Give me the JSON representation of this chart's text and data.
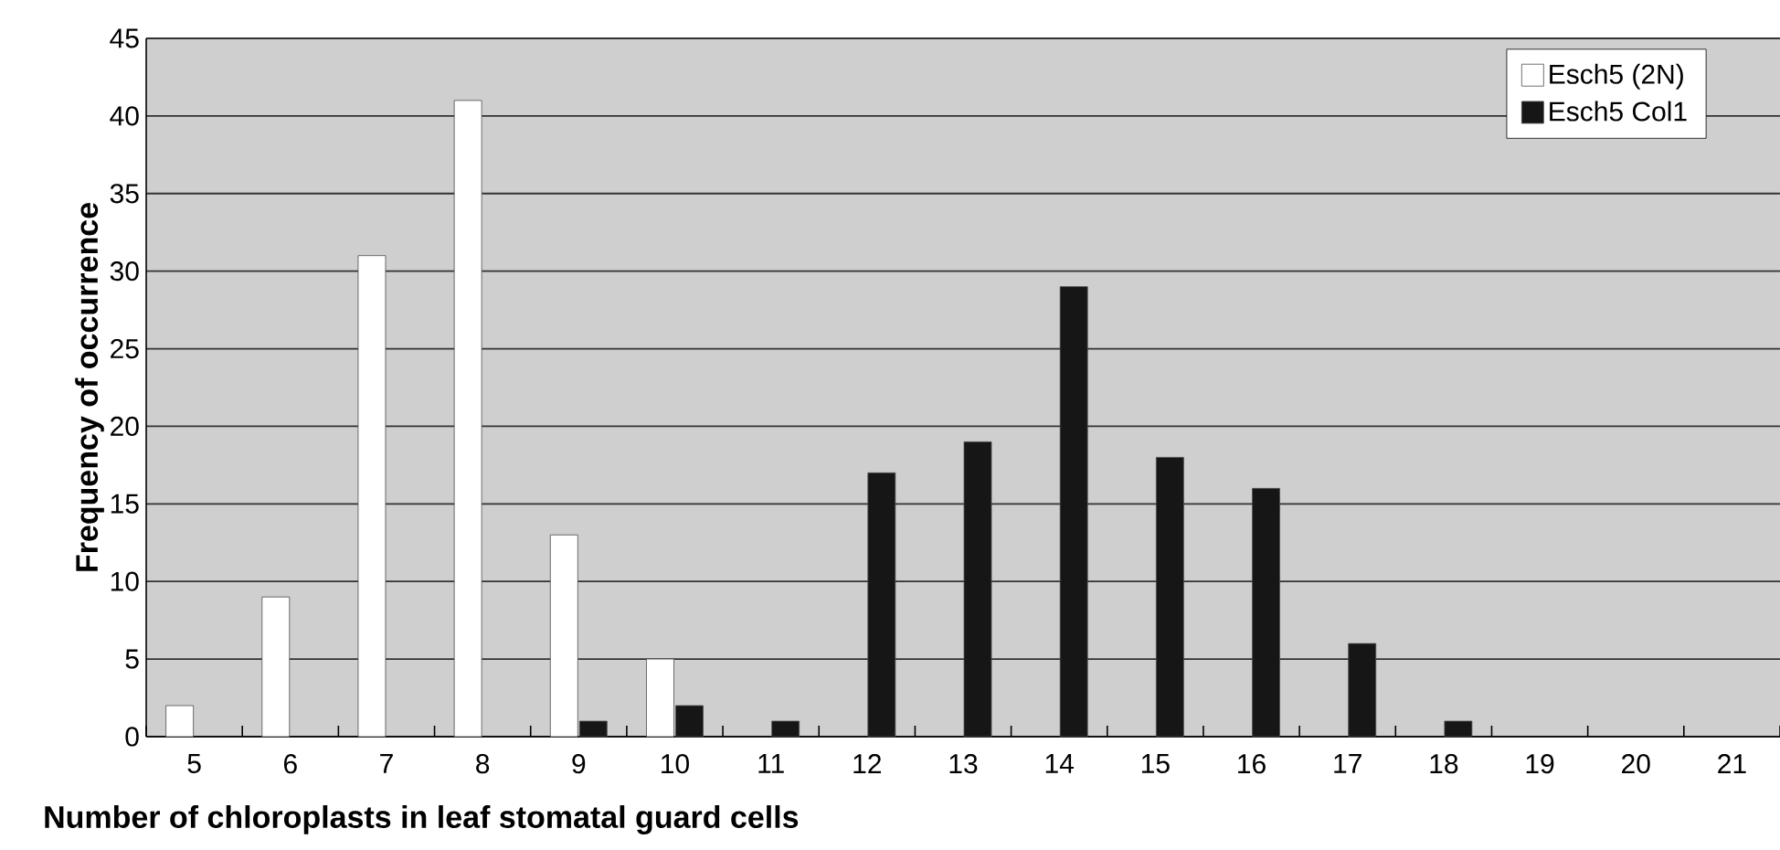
{
  "chart_data": {
    "type": "bar",
    "xlabel": "Number of chloroplasts in leaf stomatal guard cells",
    "ylabel": "Frequency of occurrence",
    "categories": [
      "5",
      "6",
      "7",
      "8",
      "9",
      "10",
      "11",
      "12",
      "13",
      "14",
      "15",
      "16",
      "17",
      "18",
      "19",
      "20",
      "21"
    ],
    "series": [
      {
        "name": "Esch5 (2N)",
        "color": "#ffffff",
        "values": [
          2,
          9,
          31,
          41,
          13,
          5,
          0,
          0,
          0,
          0,
          0,
          0,
          0,
          0,
          0,
          0,
          0
        ]
      },
      {
        "name": "Esch5 Col1",
        "color": "#161616",
        "values": [
          0,
          0,
          0,
          0,
          1,
          2,
          1,
          17,
          19,
          29,
          18,
          16,
          6,
          1,
          0,
          0,
          0
        ]
      }
    ],
    "ylim": [
      0,
      45
    ],
    "yticks": [
      0,
      5,
      10,
      15,
      20,
      25,
      30,
      35,
      40,
      45
    ],
    "grid": "y",
    "legend": "top right"
  }
}
